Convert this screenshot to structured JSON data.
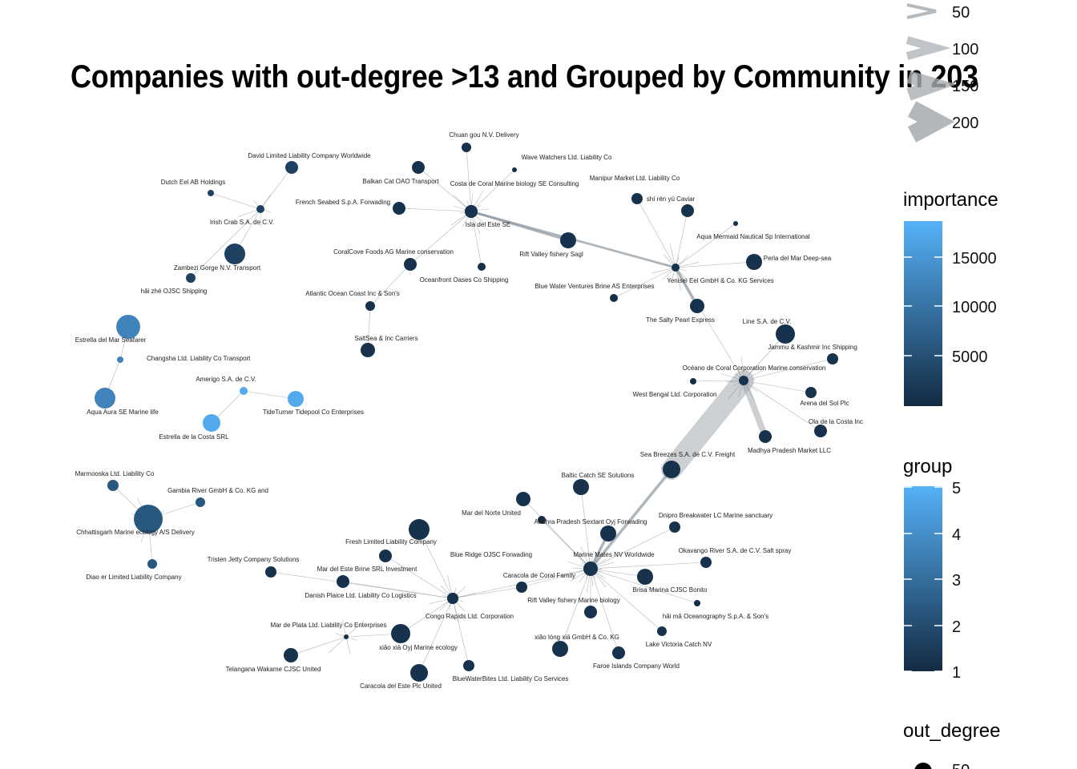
{
  "title": "Companies with out-degree >13 and Grouped by Community in 203",
  "nodes": [
    {
      "id": "chuan",
      "label": "Chuan gou  N.V. Delivery",
      "importance": 1000
    },
    {
      "id": "wave",
      "label": "Wave Watchers Ltd. Liability Co",
      "importance": 500
    },
    {
      "id": "balkan",
      "label": "Balkan Cat OAO Transport",
      "importance": 1000
    },
    {
      "id": "costa",
      "label": "Costa de Coral Marine biology SE Consulting",
      "importance": 1000
    },
    {
      "id": "french",
      "label": "French  Seabed S.p.A. Forwading",
      "importance": 1000
    },
    {
      "id": "isla",
      "label": "Isla del Este SE",
      "importance": 1000
    },
    {
      "id": "manipur",
      "label": "Manipur  Market Ltd. Liability Co",
      "importance": 1000
    },
    {
      "id": "shi",
      "label": "shí rén yú Caviar",
      "importance": 1000
    },
    {
      "id": "aquamermaid",
      "label": "Aqua Mermaid Nautical Sp International",
      "importance": 500
    },
    {
      "id": "perla",
      "label": "Perla del Mar Deep-sea",
      "importance": 1000
    },
    {
      "id": "rift1",
      "label": "Rift Valley fishery Sagl",
      "importance": 1000
    },
    {
      "id": "coralcove",
      "label": "CoralCove Foods AG Marine conservation",
      "importance": 1000
    },
    {
      "id": "oceanfront",
      "label": "Oceanfront Oases Co Shipping",
      "importance": 500
    },
    {
      "id": "bluewater",
      "label": "Blue Water Ventures Brine AS Enterprises",
      "importance": 500
    },
    {
      "id": "yenisei",
      "label": "Yenisei  Eel GmbH & Co. KG Services",
      "importance": 1000
    },
    {
      "id": "atlantic",
      "label": "Atlantic Ocean Coast  Inc & Son's",
      "importance": 1000
    },
    {
      "id": "saltysea",
      "label": "SaltSea & Inc Carriers",
      "importance": 1000
    },
    {
      "id": "saltypearl",
      "label": "The Salty Pearl Express",
      "importance": 1000
    },
    {
      "id": "line",
      "label": "Line S.A. de C.V.",
      "importance": 1000
    },
    {
      "id": "jammu",
      "label": "Jammu & Kashmir  Inc Shipping",
      "importance": 1000
    },
    {
      "id": "oceano",
      "label": "Océano de Coral Corporation Marine conservation",
      "importance": 1000
    },
    {
      "id": "westbengal",
      "label": "West Bengal  Ltd. Corporation",
      "importance": 500
    },
    {
      "id": "arena",
      "label": "Arena del Sol Plc",
      "importance": 1000
    },
    {
      "id": "ola",
      "label": "Ola de la Costa Inc",
      "importance": 1000
    },
    {
      "id": "madhya",
      "label": "Madhya Pradesh  Market LLC",
      "importance": 1000
    },
    {
      "id": "seabreezes",
      "label": "Sea Breezes S.A. de C.V. Freight",
      "importance": 1000
    },
    {
      "id": "david",
      "label": "David Limited Liability Company Worldwide",
      "importance": 3000
    },
    {
      "id": "dutch",
      "label": "Dutch Eel AB Holdings",
      "importance": 3000
    },
    {
      "id": "irish",
      "label": "Irish Crab S.A. de C.V.",
      "importance": 3000
    },
    {
      "id": "zambezi",
      "label": "Zambezi Gorge  N.V. Transport",
      "importance": 3000
    },
    {
      "id": "haizhe",
      "label": "hǎi zhé OJSC Shipping",
      "importance": 3000
    },
    {
      "id": "estrellamar",
      "label": "Estrella del Mar Seafarer",
      "importance": 12000
    },
    {
      "id": "changsha",
      "label": "Changsha Ltd. Liability Co Transport",
      "importance": 12000
    },
    {
      "id": "aquaaura",
      "label": "Aqua Aura SE Marine life",
      "importance": 12000
    },
    {
      "id": "amerigo",
      "label": "Amerigo S.A. de C.V.",
      "importance": 17000
    },
    {
      "id": "tideturner",
      "label": "TideTurner Tidepool Co Enterprises",
      "importance": 17000
    },
    {
      "id": "estrellacosta",
      "label": "Estrella de la Costa SRL",
      "importance": 17000
    },
    {
      "id": "marmooska",
      "label": "Marmooska Ltd. Liability Co",
      "importance": 6000
    },
    {
      "id": "gambia",
      "label": "Gambia River   GmbH & Co. KG and",
      "importance": 6000
    },
    {
      "id": "chhattisgarh",
      "label": "Chhattisgarh   Marine ecology A/S Delivery",
      "importance": 6000
    },
    {
      "id": "diao",
      "label": "Diao er  Limited Liability Company",
      "importance": 6000
    },
    {
      "id": "baltic",
      "label": "Baltic Catch SE Solutions",
      "importance": 1000
    },
    {
      "id": "mardelnorte",
      "label": "Mar del Norte United",
      "importance": 1000
    },
    {
      "id": "dnipro",
      "label": "Dnipro  Breakwater LC Marine sanctuary",
      "importance": 1000
    },
    {
      "id": "andhra",
      "label": "Andhra Pradesh   Sextant Oyj Forwading",
      "importance": 1000
    },
    {
      "id": "freshltd",
      "label": "Fresh Limited Liability Company",
      "importance": 1000
    },
    {
      "id": "blueridge",
      "label": "Blue Ridge   OJSC Forwading",
      "importance": 1000
    },
    {
      "id": "marinemates",
      "label": "Marine Mates NV Worldwide",
      "importance": 1000
    },
    {
      "id": "okavango",
      "label": "Okavango River  S.A. de C.V. Salt spray",
      "importance": 1000
    },
    {
      "id": "tristen",
      "label": "Tristen Jetty Company Solutions",
      "importance": 1000
    },
    {
      "id": "mardeleste",
      "label": "Mar del Este Brine SRL Investment",
      "importance": 1000
    },
    {
      "id": "caracolafamily",
      "label": "Caracola de Coral Family",
      "importance": 1000
    },
    {
      "id": "brisa",
      "label": "Brisa Marina CJSC Bonito",
      "importance": 1000
    },
    {
      "id": "danish",
      "label": "Danish Plaice Ltd. Liability Co Logistics",
      "importance": 1000
    },
    {
      "id": "congo",
      "label": "Congo Rapids   Ltd. Corporation",
      "importance": 1000
    },
    {
      "id": "rift2",
      "label": "Rift Valley fishery Marine biology",
      "importance": 1000
    },
    {
      "id": "haima",
      "label": "hǎi mǎ Oceanography S.p.A. & Son's",
      "importance": 500
    },
    {
      "id": "mardeplata",
      "label": "Mar de Plata Ltd. Liability Co Enterprises",
      "importance": 500
    },
    {
      "id": "xiaoxia",
      "label": "xiǎo xiā Oyj Marine ecology",
      "importance": 1000
    },
    {
      "id": "xiaolong",
      "label": "xiǎo lóng xiā GmbH & Co. KG",
      "importance": 1000
    },
    {
      "id": "lakevictoria",
      "label": "Lake Victoria Catch  NV",
      "importance": 1000
    },
    {
      "id": "telangana",
      "label": "Telangana  Wakame CJSC United",
      "importance": 1000
    },
    {
      "id": "faroe",
      "label": "Faroe Islands  Company World",
      "importance": 1000
    },
    {
      "id": "bluewaterbites",
      "label": "BlueWaterBites Ltd. Liability Co Services",
      "importance": 1000
    },
    {
      "id": "caracolaplc",
      "label": "Caracola del Este Plc United",
      "importance": 1000
    }
  ],
  "edges": [
    {
      "from": "isla",
      "to": "balkan",
      "weight": 1
    },
    {
      "from": "isla",
      "to": "chuan",
      "weight": 1
    },
    {
      "from": "isla",
      "to": "wave",
      "weight": 1
    },
    {
      "from": "isla",
      "to": "french",
      "weight": 1
    },
    {
      "from": "isla",
      "to": "coralcove",
      "weight": 1
    },
    {
      "from": "isla",
      "to": "oceanfront",
      "weight": 1
    },
    {
      "from": "isla",
      "to": "rift1",
      "weight": 8
    },
    {
      "from": "isla",
      "to": "yenisei",
      "weight": 8
    },
    {
      "from": "coralcove",
      "to": "atlantic",
      "weight": 1
    },
    {
      "from": "atlantic",
      "to": "saltysea",
      "weight": 1
    },
    {
      "from": "yenisei",
      "to": "manipur",
      "weight": 1
    },
    {
      "from": "yenisei",
      "to": "shi",
      "weight": 1
    },
    {
      "from": "yenisei",
      "to": "aquamermaid",
      "weight": 1
    },
    {
      "from": "yenisei",
      "to": "perla",
      "weight": 1
    },
    {
      "from": "yenisei",
      "to": "bluewater",
      "weight": 1
    },
    {
      "from": "yenisei",
      "to": "saltypearl",
      "weight": 10
    },
    {
      "from": "yenisei",
      "to": "oceano",
      "weight": 1
    },
    {
      "from": "oceano",
      "to": "line",
      "weight": 1
    },
    {
      "from": "oceano",
      "to": "jammu",
      "weight": 1
    },
    {
      "from": "oceano",
      "to": "westbengal",
      "weight": 1
    },
    {
      "from": "oceano",
      "to": "arena",
      "weight": 1
    },
    {
      "from": "oceano",
      "to": "ola",
      "weight": 1
    },
    {
      "from": "oceano",
      "to": "madhya",
      "weight": 60
    },
    {
      "from": "oceano",
      "to": "seabreezes",
      "weight": 200
    },
    {
      "from": "seabreezes",
      "to": "marinemates",
      "weight": 10
    },
    {
      "from": "irish",
      "to": "david",
      "weight": 1
    },
    {
      "from": "irish",
      "to": "dutch",
      "weight": 1
    },
    {
      "from": "irish",
      "to": "zambezi",
      "weight": 1
    },
    {
      "from": "irish",
      "to": "haizhe",
      "weight": 1
    },
    {
      "from": "changsha",
      "to": "estrellamar",
      "weight": 1
    },
    {
      "from": "changsha",
      "to": "aquaaura",
      "weight": 1
    },
    {
      "from": "amerigo",
      "to": "tideturner",
      "weight": 1
    },
    {
      "from": "amerigo",
      "to": "estrellacosta",
      "weight": 1
    },
    {
      "from": "chhattisgarh",
      "to": "marmooska",
      "weight": 1
    },
    {
      "from": "chhattisgarh",
      "to": "gambia",
      "weight": 1
    },
    {
      "from": "chhattisgarh",
      "to": "diao",
      "weight": 1
    },
    {
      "from": "marinemates",
      "to": "baltic",
      "weight": 1
    },
    {
      "from": "marinemates",
      "to": "mardelnorte",
      "weight": 1
    },
    {
      "from": "marinemates",
      "to": "dnipro",
      "weight": 1
    },
    {
      "from": "marinemates",
      "to": "andhra",
      "weight": 10
    },
    {
      "from": "marinemates",
      "to": "andhranode",
      "weight": 1
    },
    {
      "from": "marinemates",
      "to": "okavango",
      "weight": 1
    },
    {
      "from": "marinemates",
      "to": "brisa",
      "weight": 1
    },
    {
      "from": "marinemates",
      "to": "caracolafamily",
      "weight": 1
    },
    {
      "from": "marinemates",
      "to": "rift2",
      "weight": 1
    },
    {
      "from": "marinemates",
      "to": "haima",
      "weight": 1
    },
    {
      "from": "marinemates",
      "to": "lakevictoria",
      "weight": 1
    },
    {
      "from": "marinemates",
      "to": "faroe",
      "weight": 1
    },
    {
      "from": "marinemates",
      "to": "xiaolong",
      "weight": 1
    },
    {
      "from": "marinemates",
      "to": "congo",
      "weight": 1
    },
    {
      "from": "congo",
      "to": "freshltd",
      "weight": 1
    },
    {
      "from": "congo",
      "to": "blueridge",
      "weight": 1
    },
    {
      "from": "congo",
      "to": "tristen",
      "weight": 1
    },
    {
      "from": "congo",
      "to": "mardeleste",
      "weight": 1
    },
    {
      "from": "congo",
      "to": "danish",
      "weight": 1
    },
    {
      "from": "congo",
      "to": "caracolafamily",
      "weight": 1
    },
    {
      "from": "congo",
      "to": "xiaoxia",
      "weight": 1
    },
    {
      "from": "congo",
      "to": "bluewaterbites",
      "weight": 1
    },
    {
      "from": "congo",
      "to": "caracolaplc",
      "weight": 1
    },
    {
      "from": "mardeplata",
      "to": "xiaoxia",
      "weight": 1
    },
    {
      "from": "mardeplata",
      "to": "telangana",
      "weight": 1
    }
  ],
  "legend": {
    "weight": {
      "title": "",
      "values": [
        "50",
        "100",
        "150",
        "200"
      ]
    },
    "importance": {
      "title": "importance",
      "ticks": [
        "15000",
        "10000",
        "5000"
      ],
      "color_low": "#132B43",
      "color_high": "#56B1F7"
    },
    "group": {
      "title": "group",
      "ticks": [
        "5",
        "4",
        "3",
        "2",
        "1"
      ]
    },
    "out_degree": {
      "title": "out_degree",
      "values": [
        "50"
      ]
    }
  }
}
